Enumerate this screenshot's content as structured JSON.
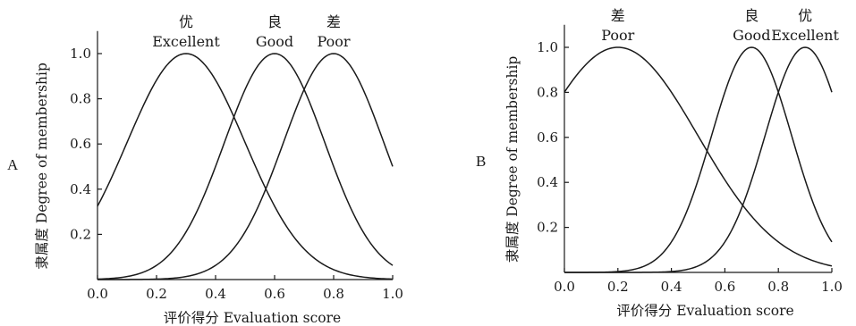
{
  "chart_data": [
    {
      "type": "line",
      "panel_label": "A",
      "xlabel": "评价得分 Evaluation score",
      "ylabel": "隶属度 Degree of membership",
      "xlim": [
        0,
        1.0
      ],
      "ylim": [
        0,
        1.1
      ],
      "x_ticks": [
        {
          "value": 0,
          "label": "0.0"
        },
        {
          "value": 0.2,
          "label": "0.2"
        },
        {
          "value": 0.4,
          "label": "0.4"
        },
        {
          "value": 0.6,
          "label": "0.6"
        },
        {
          "value": 0.8,
          "label": "0.8"
        },
        {
          "value": 1.0,
          "label": "1.0"
        }
      ],
      "y_ticks": [
        {
          "value": 0.2,
          "label": "0.2"
        },
        {
          "value": 0.4,
          "label": "0.4"
        },
        {
          "value": 0.6,
          "label": "0.6"
        },
        {
          "value": 0.8,
          "label": "0.8"
        },
        {
          "value": 1.0,
          "label": "1.0"
        }
      ],
      "grid": false,
      "series": [
        {
          "name_cn": "优",
          "name": "Excellent",
          "center": 0.3,
          "sigma": 0.2
        },
        {
          "name_cn": "良",
          "name": "Good",
          "center": 0.6,
          "sigma": 0.17
        },
        {
          "name_cn": "差",
          "name": "Poor",
          "center": 0.8,
          "sigma": 0.17
        }
      ]
    },
    {
      "type": "line",
      "panel_label": "B",
      "xlabel": "评价得分 Evaluation score",
      "ylabel": "隶属度 Degree of membership",
      "xlim": [
        0,
        1.0
      ],
      "ylim": [
        0,
        1.1
      ],
      "x_ticks": [
        {
          "value": 0,
          "label": "0.0"
        },
        {
          "value": 0.2,
          "label": "0.2"
        },
        {
          "value": 0.4,
          "label": "0.4"
        },
        {
          "value": 0.6,
          "label": "0.6"
        },
        {
          "value": 0.8,
          "label": "0.8"
        },
        {
          "value": 1.0,
          "label": "1.0"
        }
      ],
      "y_ticks": [
        {
          "value": 0.2,
          "label": "0.2"
        },
        {
          "value": 0.4,
          "label": "0.4"
        },
        {
          "value": 0.6,
          "label": "0.6"
        },
        {
          "value": 0.8,
          "label": "0.8"
        },
        {
          "value": 1.0,
          "label": "1.0"
        }
      ],
      "grid": false,
      "series": [
        {
          "name_cn": "差",
          "name": "Poor",
          "center": 0.2,
          "sigma": 0.3
        },
        {
          "name_cn": "良",
          "name": "Good",
          "center": 0.7,
          "sigma": 0.15
        },
        {
          "name_cn": "优",
          "name": "Excellent",
          "center": 0.9,
          "sigma": 0.15
        }
      ]
    }
  ]
}
